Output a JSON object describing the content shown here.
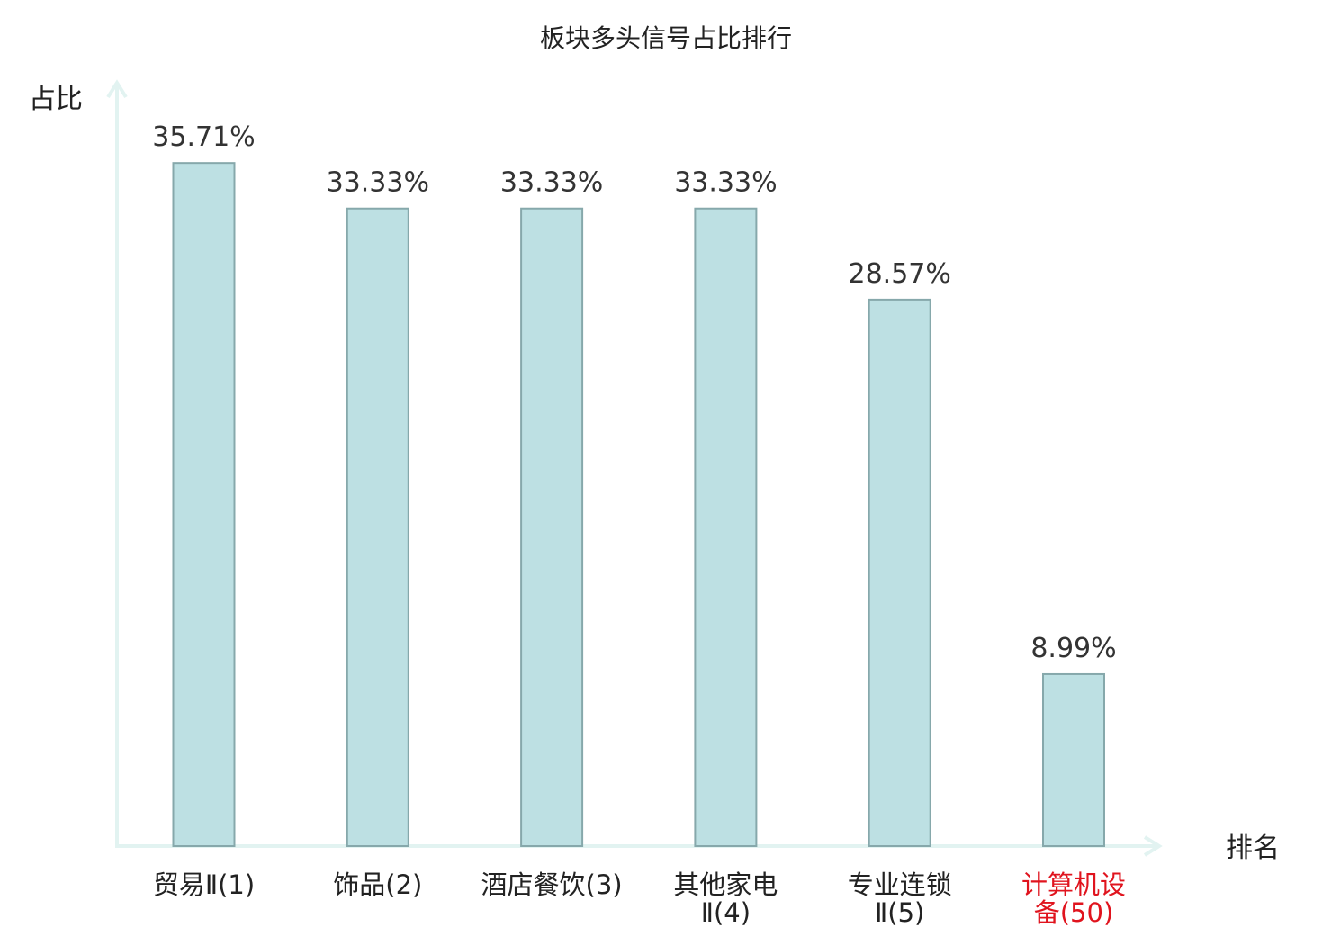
{
  "chart_data": {
    "type": "bar",
    "title": "板块多头信号占比排行",
    "ylabel": "占比",
    "xlabel": "排名",
    "categories": [
      [
        "贸易Ⅱ(1)"
      ],
      [
        "饰品(2)"
      ],
      [
        "酒店餐饮(3)"
      ],
      [
        "其他家电",
        "Ⅱ(4)"
      ],
      [
        "专业连锁",
        "Ⅱ(5)"
      ],
      [
        "计算机设",
        "备(50)"
      ]
    ],
    "values": [
      35.71,
      33.33,
      33.33,
      33.33,
      28.57,
      8.99
    ],
    "value_labels": [
      "35.71%",
      "33.33%",
      "33.33%",
      "33.33%",
      "28.57%",
      "8.99%"
    ],
    "highlight_index": 5,
    "ylim": [
      0,
      40
    ],
    "grid": false,
    "legend": "none",
    "colors": {
      "bar_fill": "#bde0e3",
      "bar_stroke": "#86a8ab",
      "axis": "#e2f3f1",
      "text": "#222222",
      "label_text": "#333333",
      "highlight_text": "#e0141e"
    }
  }
}
